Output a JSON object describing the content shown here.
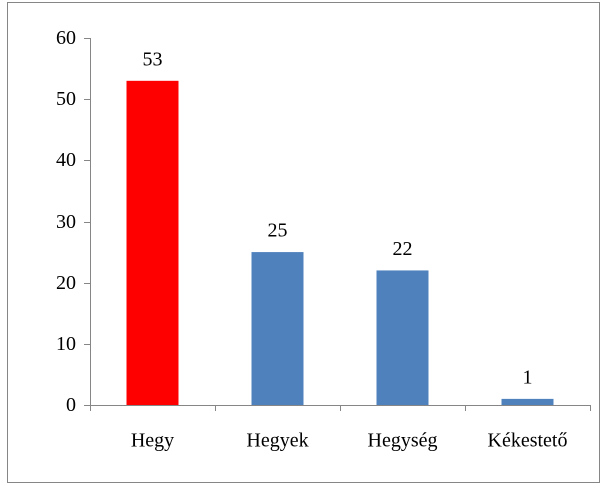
{
  "chart_data": {
    "type": "bar",
    "categories": [
      "Hegy",
      "Hegyek",
      "Hegység",
      "Kékestető"
    ],
    "values": [
      53,
      25,
      22,
      1
    ],
    "colors": [
      "#ff0000",
      "#4f81bd",
      "#4f81bd",
      "#4f81bd"
    ],
    "ylim": [
      0,
      60
    ],
    "yticks": [
      0,
      10,
      20,
      30,
      40,
      50,
      60
    ],
    "grid": false,
    "legend": false
  }
}
